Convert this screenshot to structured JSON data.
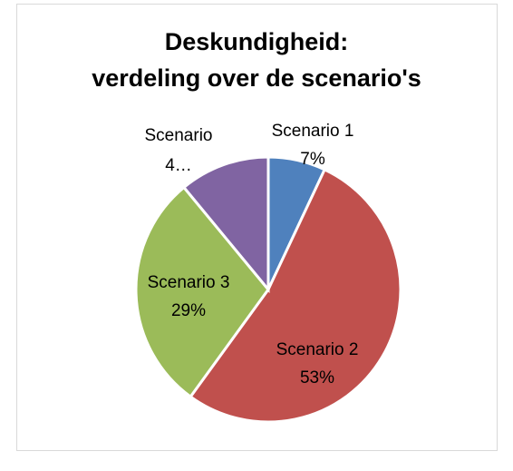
{
  "chart_data": {
    "type": "pie",
    "title": [
      "Deskundigheid:",
      "verdeling over de scenario's"
    ],
    "categories": [
      "Scenario 1",
      "Scenario 2",
      "Scenario 3",
      "Scenario 4…"
    ],
    "values": [
      7,
      53,
      29,
      11
    ],
    "value_labels": [
      "7%",
      "53%",
      "29%",
      null
    ],
    "colors": [
      "#4f81bd",
      "#c0504d",
      "#9bbb59",
      "#8064a2"
    ]
  }
}
